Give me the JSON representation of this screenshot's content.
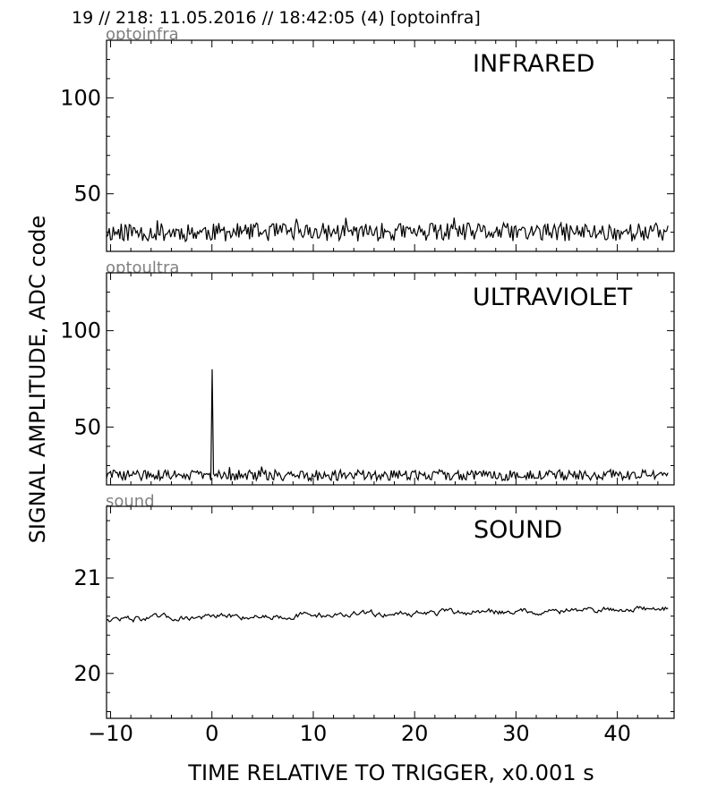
{
  "header": {
    "title": "19 // 218:   11.05.2016 // 18:42:05 (4)  [optoinfra]"
  },
  "axes": {
    "ylabel": "SIGNAL AMPLITUDE,  ADC code",
    "xlabel": "TIME RELATIVE TO TRIGGER,   x0.001 s",
    "xlim": [
      -10.4,
      45.6
    ],
    "xticks": [
      -10,
      0,
      10,
      20,
      30,
      40
    ],
    "xtick_labels": [
      "−10",
      "0",
      "10",
      "20",
      "30",
      "40"
    ]
  },
  "colors": {
    "line": "#000000",
    "channel_label": "#808080"
  },
  "chart_data": [
    {
      "type": "line",
      "channel": "optoinfra",
      "title": "INFRARED",
      "ylim": [
        20,
        130
      ],
      "yticks": [
        50,
        100
      ],
      "ytick_labels": [
        "50",
        "100"
      ],
      "x_start": -10.4,
      "x_end": 45.0,
      "baseline": 30,
      "noise": 6,
      "seed": 11,
      "spikes": []
    },
    {
      "type": "line",
      "channel": "optoultra",
      "title": "ULTRAVIOLET",
      "ylim": [
        20,
        130
      ],
      "yticks": [
        50,
        100
      ],
      "ytick_labels": [
        "50",
        "100"
      ],
      "x_start": -10.4,
      "x_end": 45.0,
      "baseline": 25,
      "noise": 3.5,
      "seed": 29,
      "spikes": [
        {
          "x": 0.0,
          "y": 80
        }
      ]
    },
    {
      "type": "line",
      "channel": "sound",
      "title": "SOUND",
      "ylim": [
        19.53,
        21.75
      ],
      "yticks": [
        20,
        21
      ],
      "ytick_labels": [
        "20",
        "21"
      ],
      "x_start": -10.4,
      "x_end": 45.0,
      "baseline_start": 20.57,
      "baseline_end": 20.68,
      "noise": 0.04,
      "seed": 47,
      "spikes": []
    }
  ]
}
